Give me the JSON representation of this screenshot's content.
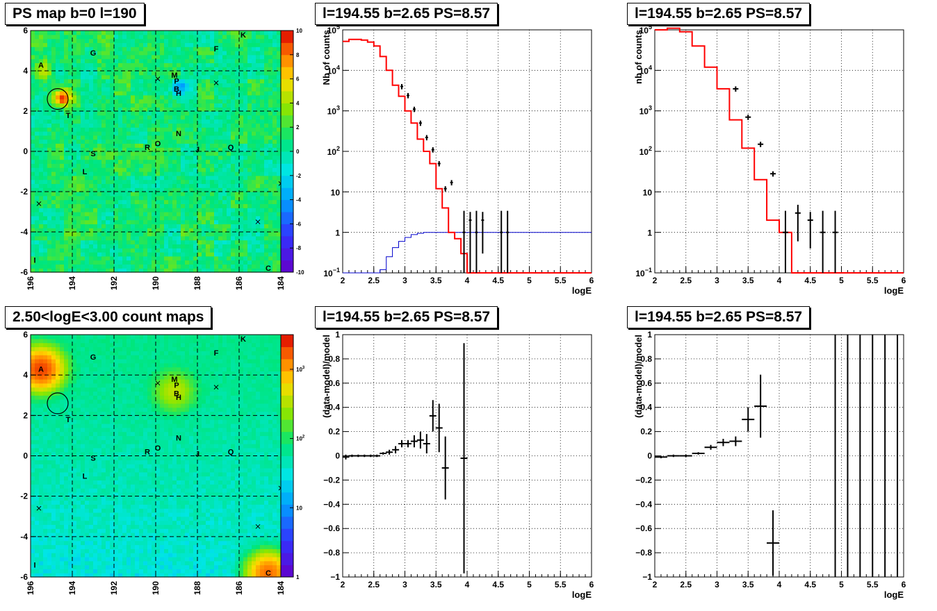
{
  "colors": {
    "red": "#ff0000",
    "blue": "#0000cc",
    "black": "#000000",
    "grid": "#000000"
  },
  "chart_data": [
    {
      "id": "psmap",
      "type": "heatmap",
      "title": "PS map b=0 l=190",
      "xlim": [
        196,
        184
      ],
      "ylim": [
        -6,
        6
      ],
      "xticks": [
        "196",
        "194",
        "192",
        "190",
        "188",
        "186",
        "184"
      ],
      "yticks": [
        "-6",
        "-4",
        "-2",
        "0",
        "2",
        "4",
        "6"
      ],
      "colorbar": {
        "min": -10,
        "max": 10,
        "ticks": [
          "-10",
          "-8",
          "-6",
          "-4",
          "-2",
          "0",
          "2",
          "4",
          "6",
          "8",
          "10"
        ]
      },
      "sources": [
        {
          "label": "A",
          "l": 195.5,
          "b": 4.3
        },
        {
          "label": "G",
          "l": 193.0,
          "b": 4.9
        },
        {
          "label": "F",
          "l": 187.1,
          "b": 5.1
        },
        {
          "label": "K",
          "l": 185.8,
          "b": 5.8
        },
        {
          "label": "M",
          "l": 189.1,
          "b": 3.8
        },
        {
          "label": "P",
          "l": 189.0,
          "b": 3.5
        },
        {
          "label": "B",
          "l": 189.0,
          "b": 3.1
        },
        {
          "label": "H",
          "l": 188.9,
          "b": 2.9
        },
        {
          "label": "T",
          "l": 194.2,
          "b": 1.8
        },
        {
          "label": "N",
          "l": 188.9,
          "b": 0.9
        },
        {
          "label": "O",
          "l": 189.9,
          "b": 0.4
        },
        {
          "label": "R",
          "l": 190.4,
          "b": 0.2
        },
        {
          "label": "J",
          "l": 188.0,
          "b": 0.1
        },
        {
          "label": "Q",
          "l": 186.4,
          "b": 0.2
        },
        {
          "label": "S",
          "l": 193.0,
          "b": -0.1
        },
        {
          "label": "L",
          "l": 193.4,
          "b": -1.0
        },
        {
          "label": "I",
          "l": 195.8,
          "b": -5.4
        },
        {
          "label": "C",
          "l": 184.6,
          "b": -5.8
        }
      ],
      "crosses": [
        [
          189.9,
          3.6
        ],
        [
          187.1,
          3.4
        ],
        [
          195.6,
          -2.6
        ],
        [
          185.1,
          -3.5
        ],
        [
          184.0,
          -1.6
        ]
      ],
      "circle": {
        "l": 194.7,
        "b": 2.6
      },
      "hotspots": [
        {
          "l": 194.5,
          "b": 2.7,
          "value": 9
        },
        {
          "l": 195.2,
          "b": 4.0,
          "value": 4
        },
        {
          "l": 188.8,
          "b": 3.2,
          "value": -5
        }
      ]
    },
    {
      "id": "spec1",
      "type": "line",
      "title": "l=194.55 b=2.65 PS=8.57",
      "xlabel": "logE",
      "ylabel": "Nb of counts",
      "xlim": [
        2,
        6
      ],
      "ylim_log": [
        0.1,
        100000
      ],
      "xticks": [
        "2",
        "2.5",
        "3",
        "3.5",
        "4",
        "4.5",
        "5",
        "5.5",
        "6"
      ],
      "yticks": [
        "10⁻¹",
        "1",
        "10",
        "10²",
        "10³",
        "10⁴",
        "10⁵"
      ],
      "bin_width": 0.1,
      "model_red": [
        52000,
        58000,
        58000,
        56000,
        50000,
        40000,
        22000,
        10000,
        4300,
        2300,
        1000,
        500,
        200,
        100,
        50,
        12,
        4,
        1.0,
        0.7,
        0.3,
        0.1,
        0.1,
        0.1,
        0.1,
        0.1,
        0.1,
        0.1,
        0.1,
        0.1,
        0.1,
        0.1,
        0.1,
        0.1,
        0.1,
        0.1,
        0.1,
        0.1,
        0.1,
        0.1,
        0.1
      ],
      "model_blue": [
        0.1,
        0.1,
        0.1,
        0.1,
        0.1,
        0.1,
        0.12,
        0.25,
        0.42,
        0.6,
        0.75,
        0.88,
        0.95,
        1.0,
        1.0,
        1.0,
        1.0,
        1.0,
        1.0,
        1.0,
        1.0,
        1.0,
        1.0,
        1.0,
        1.0,
        1.0,
        1.0,
        1.0,
        1.0,
        1.0,
        1.0,
        1.0,
        1.0,
        1.0,
        1.0,
        1.0,
        1.0,
        1.0,
        1.0,
        1.0
      ],
      "data_points": [
        {
          "x": 2.95,
          "y": 4000
        },
        {
          "x": 3.05,
          "y": 2400
        },
        {
          "x": 3.15,
          "y": 1100
        },
        {
          "x": 3.25,
          "y": 500
        },
        {
          "x": 3.35,
          "y": 220
        },
        {
          "x": 3.45,
          "y": 110
        },
        {
          "x": 3.55,
          "y": 50
        },
        {
          "x": 3.65,
          "y": 12
        },
        {
          "x": 3.75,
          "y": 17
        },
        {
          "x": 3.95,
          "y": 1,
          "lo": 0.1
        },
        {
          "x": 4.05,
          "y": 2,
          "lo": 0.1
        },
        {
          "x": 4.15,
          "y": 1,
          "lo": 0.1
        },
        {
          "x": 4.25,
          "y": 2,
          "lo": 0.3
        },
        {
          "x": 4.55,
          "y": 1,
          "lo": 0.1
        },
        {
          "x": 4.65,
          "y": 1,
          "lo": 0.1
        }
      ]
    },
    {
      "id": "spec2",
      "type": "line",
      "title": "l=194.55 b=2.65 PS=8.57",
      "xlabel": "logE",
      "ylabel": "nb of counts",
      "xlim": [
        2,
        6
      ],
      "ylim_log": [
        0.1,
        100000
      ],
      "xticks": [
        "2",
        "2.5",
        "3",
        "3.5",
        "4",
        "4.5",
        "5",
        "5.5",
        "6"
      ],
      "yticks": [
        "10⁻¹",
        "1",
        "10",
        "10²",
        "10³",
        "10⁴",
        "10⁵"
      ],
      "bin_width": 0.2,
      "model_red": [
        100000,
        110000,
        90000,
        40000,
        12000,
        3500,
        600,
        120,
        20,
        2,
        1,
        0.1,
        0.1,
        0.1,
        0.1,
        0.1,
        0.1,
        0.1,
        0.1,
        0.1
      ],
      "data_points": [
        {
          "x": 3.3,
          "y": 3500
        },
        {
          "x": 3.5,
          "y": 700
        },
        {
          "x": 3.7,
          "y": 150
        },
        {
          "x": 3.9,
          "y": 28
        },
        {
          "x": 4.1,
          "y": 1,
          "lo": 0.1
        },
        {
          "x": 4.3,
          "y": 3,
          "lo": 0.6
        },
        {
          "x": 4.5,
          "y": 2,
          "lo": 0.4
        },
        {
          "x": 4.7,
          "y": 1,
          "lo": 0.1
        },
        {
          "x": 4.9,
          "y": 1,
          "lo": 0.1
        }
      ]
    },
    {
      "id": "countmap",
      "type": "heatmap",
      "title": "2.50<logE<3.00 count maps",
      "xlim": [
        196,
        184
      ],
      "ylim": [
        -6,
        6
      ],
      "xticks": [
        "196",
        "194",
        "192",
        "190",
        "188",
        "186",
        "184"
      ],
      "yticks": [
        "-6",
        "-4",
        "-2",
        "0",
        "2",
        "4",
        "6"
      ],
      "colorbar": {
        "log": true,
        "ticks": [
          "1",
          "10",
          "10²",
          "10³"
        ]
      },
      "hotspots": [
        {
          "l": 195.5,
          "b": 4.3,
          "value": 2000
        },
        {
          "l": 189.1,
          "b": 3.2,
          "value": 300
        },
        {
          "l": 184.6,
          "b": -5.8,
          "value": 1500
        }
      ]
    },
    {
      "id": "resid1",
      "type": "scatter",
      "title": "l=194.55 b=2.65 PS=8.57",
      "xlabel": "logE",
      "ylabel": "(data-model)/model",
      "xlim": [
        2,
        6
      ],
      "ylim": [
        -1,
        1
      ],
      "xticks": [
        "2",
        "2.5",
        "3",
        "3.5",
        "4",
        "4.5",
        "5",
        "5.5",
        "6"
      ],
      "yticks": [
        "−1",
        "−0.8",
        "−0.6",
        "−0.4",
        "−0.2",
        "0",
        "0.2",
        "0.4",
        "0.6",
        "0.8",
        "1"
      ],
      "points": [
        {
          "x": 2.05,
          "y": -0.01,
          "e": 0.02
        },
        {
          "x": 2.15,
          "y": 0.0,
          "e": 0.01
        },
        {
          "x": 2.25,
          "y": 0.0,
          "e": 0.01
        },
        {
          "x": 2.35,
          "y": 0.0,
          "e": 0.01
        },
        {
          "x": 2.45,
          "y": 0.0,
          "e": 0.01
        },
        {
          "x": 2.55,
          "y": 0.0,
          "e": 0.01
        },
        {
          "x": 2.65,
          "y": 0.02,
          "e": 0.01
        },
        {
          "x": 2.75,
          "y": 0.03,
          "e": 0.02
        },
        {
          "x": 2.85,
          "y": 0.05,
          "e": 0.03
        },
        {
          "x": 2.95,
          "y": 0.1,
          "e": 0.03
        },
        {
          "x": 3.05,
          "y": 0.1,
          "e": 0.03
        },
        {
          "x": 3.15,
          "y": 0.12,
          "e": 0.05
        },
        {
          "x": 3.25,
          "y": 0.13,
          "e": 0.07
        },
        {
          "x": 3.35,
          "y": 0.1,
          "e": 0.08
        },
        {
          "x": 3.45,
          "y": 0.33,
          "e": 0.13
        },
        {
          "x": 3.55,
          "y": 0.23,
          "e": 0.2
        },
        {
          "x": 3.65,
          "y": -0.1,
          "e": 0.26
        },
        {
          "x": 3.95,
          "y": -0.02,
          "e": 0.95
        }
      ]
    },
    {
      "id": "resid2",
      "type": "scatter",
      "title": "l=194.55 b=2.65 PS=8.57",
      "xlabel": "logE",
      "ylabel": "(data-model)/model",
      "xlim": [
        2,
        6
      ],
      "ylim": [
        -1,
        1
      ],
      "xticks": [
        "2",
        "2.5",
        "3",
        "3.5",
        "4",
        "4.5",
        "5",
        "5.5",
        "6"
      ],
      "yticks": [
        "−1",
        "−0.8",
        "−0.6",
        "−0.4",
        "−0.2",
        "0",
        "0.2",
        "0.4",
        "0.6",
        "0.8",
        "1"
      ],
      "points": [
        {
          "x": 2.1,
          "y": -0.01,
          "e": 0.01
        },
        {
          "x": 2.3,
          "y": 0.0,
          "e": 0.01
        },
        {
          "x": 2.5,
          "y": 0.0,
          "e": 0.01
        },
        {
          "x": 2.7,
          "y": 0.02,
          "e": 0.01
        },
        {
          "x": 2.9,
          "y": 0.07,
          "e": 0.02
        },
        {
          "x": 3.1,
          "y": 0.11,
          "e": 0.03
        },
        {
          "x": 3.3,
          "y": 0.12,
          "e": 0.04
        },
        {
          "x": 3.5,
          "y": 0.3,
          "e": 0.1
        },
        {
          "x": 3.7,
          "y": 0.41,
          "e": 0.26
        },
        {
          "x": 3.9,
          "y": -0.72,
          "e": 0.27
        },
        {
          "x": 4.9,
          "y": 0,
          "e": 1.5
        },
        {
          "x": 5.1,
          "y": 0,
          "e": 1.5
        },
        {
          "x": 5.3,
          "y": 0,
          "e": 1.5
        },
        {
          "x": 5.5,
          "y": 0,
          "e": 1.5
        },
        {
          "x": 5.7,
          "y": 0,
          "e": 1.5
        },
        {
          "x": 5.9,
          "y": 0,
          "e": 1.5
        }
      ]
    }
  ]
}
